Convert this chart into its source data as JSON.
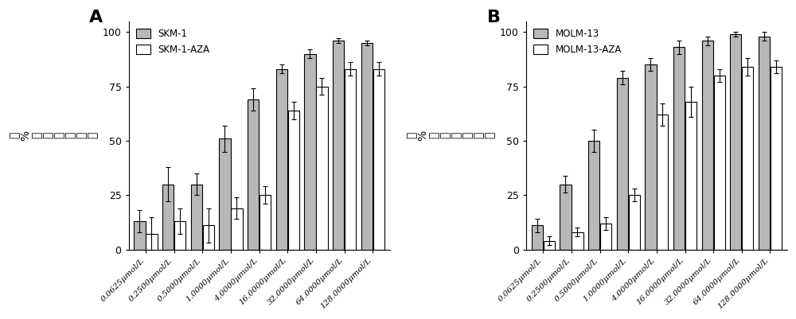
{
  "panel_A": {
    "label": "A",
    "legend": [
      "SKM-1",
      "SKM-1-AZA"
    ],
    "bar_colors": [
      "#b8b8b8",
      "#ffffff"
    ],
    "bar_edgecolor": "#000000",
    "categories": [
      "0.0625μmol/L",
      "0.2500μmol/L",
      "0.5000μmol/L",
      "1.0000μmol/L",
      "4.0000μmol/L",
      "16.0000μmol/L",
      "32.0000μmol/L",
      "64.0000μmol/L",
      "128.0000μmol/L"
    ],
    "values_1": [
      13,
      30,
      30,
      51,
      69,
      83,
      90,
      96,
      95
    ],
    "errors_1": [
      5,
      8,
      5,
      6,
      5,
      2,
      2,
      1,
      1
    ],
    "values_2": [
      7,
      13,
      11,
      19,
      25,
      64,
      75,
      83,
      83
    ],
    "errors_2": [
      8,
      6,
      8,
      5,
      4,
      4,
      4,
      3,
      3
    ],
    "ylabel_chars": [
      "（",
      "%",
      "）",
      "率",
      "制",
      "抑",
      "殖",
      "增"
    ],
    "ylim": [
      0,
      105
    ],
    "yticks": [
      0,
      25,
      50,
      75,
      100
    ]
  },
  "panel_B": {
    "label": "B",
    "legend": [
      "MOLM-13",
      "MOLM-13-AZA"
    ],
    "bar_colors": [
      "#b8b8b8",
      "#ffffff"
    ],
    "bar_edgecolor": "#000000",
    "categories": [
      "0.0625μmol/L",
      "0.2500μmol/L",
      "0.5000μmol/L",
      "1.0000μmol/L",
      "4.0000μmol/L",
      "16.0000μmol/L",
      "32.0000μmol/L",
      "64.0000μmol/L",
      "128.0000μmol/L"
    ],
    "values_1": [
      11,
      30,
      50,
      79,
      85,
      93,
      96,
      99,
      98
    ],
    "errors_1": [
      3,
      4,
      5,
      3,
      3,
      3,
      2,
      1,
      2
    ],
    "values_2": [
      4,
      8,
      12,
      25,
      62,
      68,
      80,
      84,
      84
    ],
    "errors_2": [
      2,
      2,
      3,
      3,
      5,
      7,
      3,
      4,
      3
    ],
    "ylabel_chars": [
      "（",
      "%",
      "）",
      "率",
      "制",
      "抑",
      "殖",
      "增"
    ],
    "ylim": [
      0,
      105
    ],
    "yticks": [
      0,
      25,
      50,
      75,
      100
    ]
  },
  "background_color": "#ffffff",
  "figsize": [
    10.0,
    4.01
  ],
  "dpi": 100
}
